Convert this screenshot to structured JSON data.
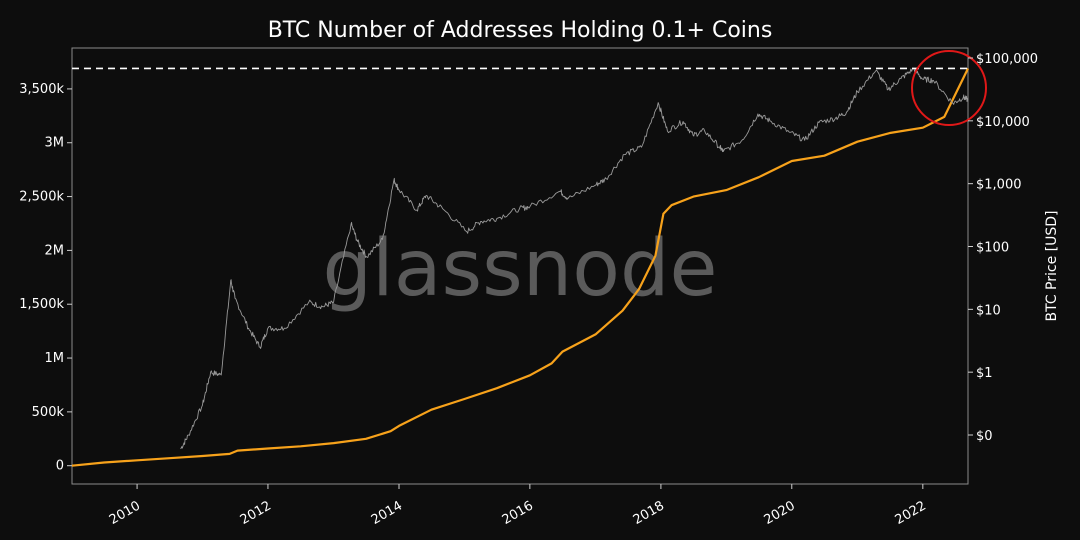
{
  "chart_data": {
    "type": "line",
    "title": "BTC Number of Addresses Holding 0.1+ Coins",
    "watermark": "glassnode",
    "x_range": [
      "2009-01-03",
      "2022-09-10"
    ],
    "x_ticks": [
      "2010",
      "2012",
      "2014",
      "2016",
      "2018",
      "2020",
      "2022"
    ],
    "y_left": {
      "label": "",
      "range": [
        -170000,
        3880000
      ],
      "ticks": [
        {
          "value": 0,
          "label": "0"
        },
        {
          "value": 500000,
          "label": "500k"
        },
        {
          "value": 1000000,
          "label": "1M"
        },
        {
          "value": 1500000,
          "label": "1,500k"
        },
        {
          "value": 2000000,
          "label": "2M"
        },
        {
          "value": 2500000,
          "label": "2,500k"
        },
        {
          "value": 3000000,
          "label": "3M"
        },
        {
          "value": 3500000,
          "label": "3,500k"
        }
      ]
    },
    "y_right": {
      "label": "BTC Price [USD]",
      "scale": "log",
      "ticks": [
        {
          "value": 0.1,
          "label": "$0"
        },
        {
          "value": 1,
          "label": "$1"
        },
        {
          "value": 10,
          "label": "$10"
        },
        {
          "value": 100,
          "label": "$100"
        },
        {
          "value": 1000,
          "label": "$1,000"
        },
        {
          "value": 10000,
          "label": "$10,000"
        },
        {
          "value": 100000,
          "label": "$100,000"
        }
      ]
    },
    "series": [
      {
        "name": "",
        "color": "#f7a21b",
        "axis": "left",
        "x": [
          "2009-01-03",
          "2009-07-01",
          "2010-01-01",
          "2010-07-01",
          "2011-01-01",
          "2011-06-01",
          "2011-07-15",
          "2012-01-01",
          "2012-07-01",
          "2013-01-01",
          "2013-07-01",
          "2013-11-15",
          "2014-01-01",
          "2014-07-01",
          "2015-01-01",
          "2015-07-01",
          "2016-01-01",
          "2016-05-01",
          "2016-07-01",
          "2017-01-01",
          "2017-06-01",
          "2017-09-01",
          "2017-12-01",
          "2018-01-15",
          "2018-03-01",
          "2018-07-01",
          "2019-01-01",
          "2019-07-01",
          "2020-01-01",
          "2020-07-01",
          "2021-01-01",
          "2021-07-01",
          "2022-01-01",
          "2022-05-01",
          "2022-09-10"
        ],
        "y": [
          0,
          30000,
          50000,
          70000,
          90000,
          110000,
          140000,
          160000,
          180000,
          210000,
          250000,
          320000,
          370000,
          520000,
          620000,
          720000,
          840000,
          950000,
          1060000,
          1220000,
          1440000,
          1640000,
          1950000,
          2340000,
          2420000,
          2500000,
          2560000,
          2680000,
          2830000,
          2880000,
          3010000,
          3090000,
          3140000,
          3240000,
          3690000
        ]
      },
      {
        "name": "",
        "color": "#9a9a9a",
        "axis": "right",
        "x": [
          "2010-09-01",
          "2010-10-15",
          "2011-01-01",
          "2011-02-15",
          "2011-04-15",
          "2011-06-08",
          "2011-07-01",
          "2011-09-15",
          "2011-11-18",
          "2012-01-01",
          "2012-04-01",
          "2012-08-16",
          "2012-11-01",
          "2013-01-01",
          "2013-04-09",
          "2013-05-15",
          "2013-07-05",
          "2013-10-01",
          "2013-12-04",
          "2014-01-01",
          "2014-04-11",
          "2014-06-01",
          "2014-09-01",
          "2015-01-14",
          "2015-04-01",
          "2015-07-01",
          "2015-11-04",
          "2016-01-01",
          "2016-06-18",
          "2016-08-01",
          "2017-01-01",
          "2017-03-01",
          "2017-06-12",
          "2017-09-15",
          "2017-12-17",
          "2018-02-06",
          "2018-05-05",
          "2018-06-29",
          "2018-09-01",
          "2018-11-25",
          "2018-12-15",
          "2019-04-01",
          "2019-06-26",
          "2019-09-01",
          "2019-12-18",
          "2020-03-13",
          "2020-06-01",
          "2020-09-01",
          "2020-11-01",
          "2021-01-01",
          "2021-04-14",
          "2021-06-22",
          "2021-09-01",
          "2021-11-10",
          "2022-01-01",
          "2022-03-01",
          "2022-06-18",
          "2022-08-15",
          "2022-09-10"
        ],
        "y": [
          0.06,
          0.1,
          0.3,
          1,
          0.9,
          29,
          15,
          5,
          2.5,
          5,
          5,
          13,
          11,
          13,
          230,
          120,
          68,
          130,
          1150,
          800,
          380,
          650,
          400,
          172,
          250,
          280,
          400,
          430,
          760,
          580,
          950,
          1200,
          2900,
          3800,
          19500,
          6900,
          9800,
          5900,
          7000,
          3800,
          3250,
          5000,
          12900,
          10000,
          6600,
          4900,
          9400,
          11000,
          13700,
          29000,
          63000,
          31600,
          47000,
          67500,
          46000,
          44000,
          19000,
          23700,
          21500
        ]
      }
    ]
  }
}
